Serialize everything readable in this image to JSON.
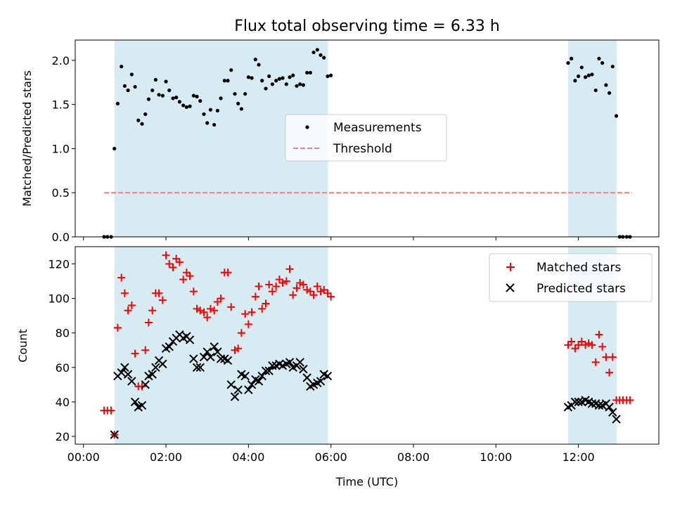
{
  "title": "Flux total observing time = 6.33 h",
  "colors": {
    "shade": "#add8e6",
    "measurement": "#000000",
    "threshold": "#f08080",
    "matched": "#ff0000",
    "predicted": "#000000"
  },
  "chart_data": [
    {
      "type": "scatter",
      "ylabel": "Matched/Predicted stars",
      "ylim": [
        0,
        2.23
      ],
      "yticks": [
        0.0,
        0.5,
        1.0,
        1.5,
        2.0
      ],
      "ytick_labels": [
        "0.0",
        "0.5",
        "1.0",
        "1.5",
        "2.0"
      ],
      "xlim_hours": [
        -0.2,
        13.95
      ],
      "shaded_windows_hours": [
        [
          0.75,
          5.93
        ],
        [
          11.75,
          12.93
        ]
      ],
      "legend": {
        "placement": "center",
        "entries": [
          "Measurements",
          "Threshold"
        ]
      },
      "threshold": {
        "name": "Threshold",
        "value": 0.5,
        "x_range_hours": [
          0.5,
          13.3
        ]
      },
      "series": [
        {
          "name": "Measurements",
          "marker": "dot",
          "points": [
            [
              0.5,
              0
            ],
            [
              0.58,
              0
            ],
            [
              0.67,
              0
            ],
            [
              0.75,
              1.0
            ],
            [
              0.83,
              1.51
            ],
            [
              0.92,
              1.93
            ],
            [
              1.0,
              1.71
            ],
            [
              1.08,
              1.66
            ],
            [
              1.17,
              1.84
            ],
            [
              1.25,
              1.7
            ],
            [
              1.33,
              1.32
            ],
            [
              1.42,
              1.28
            ],
            [
              1.5,
              1.39
            ],
            [
              1.58,
              1.56
            ],
            [
              1.67,
              1.66
            ],
            [
              1.75,
              1.78
            ],
            [
              1.83,
              1.61
            ],
            [
              1.92,
              1.6
            ],
            [
              2.0,
              1.76
            ],
            [
              2.08,
              1.66
            ],
            [
              2.17,
              1.57
            ],
            [
              2.25,
              1.58
            ],
            [
              2.33,
              1.53
            ],
            [
              2.42,
              1.49
            ],
            [
              2.5,
              1.47
            ],
            [
              2.58,
              1.48
            ],
            [
              2.67,
              1.6
            ],
            [
              2.75,
              1.59
            ],
            [
              2.83,
              1.54
            ],
            [
              2.92,
              1.39
            ],
            [
              3.0,
              1.29
            ],
            [
              3.08,
              1.44
            ],
            [
              3.17,
              1.27
            ],
            [
              3.25,
              1.43
            ],
            [
              3.33,
              1.57
            ],
            [
              3.42,
              1.77
            ],
            [
              3.5,
              1.77
            ],
            [
              3.58,
              1.89
            ],
            [
              3.67,
              1.62
            ],
            [
              3.75,
              1.51
            ],
            [
              3.83,
              1.45
            ],
            [
              3.92,
              1.62
            ],
            [
              4.0,
              1.81
            ],
            [
              4.08,
              1.8
            ],
            [
              4.17,
              2.01
            ],
            [
              4.25,
              1.95
            ],
            [
              4.33,
              1.77
            ],
            [
              4.42,
              1.68
            ],
            [
              4.5,
              1.82
            ],
            [
              4.58,
              1.73
            ],
            [
              4.67,
              1.77
            ],
            [
              4.75,
              1.79
            ],
            [
              4.83,
              1.8
            ],
            [
              4.92,
              1.73
            ],
            [
              5.0,
              1.81
            ],
            [
              5.08,
              1.83
            ],
            [
              5.17,
              1.71
            ],
            [
              5.25,
              1.73
            ],
            [
              5.33,
              1.72
            ],
            [
              5.42,
              1.86
            ],
            [
              5.5,
              1.86
            ],
            [
              5.58,
              2.09
            ],
            [
              5.67,
              2.12
            ],
            [
              5.75,
              2.06
            ],
            [
              5.83,
              2.03
            ],
            [
              5.92,
              1.82
            ],
            [
              6.0,
              1.83
            ],
            [
              11.75,
              1.97
            ],
            [
              11.83,
              2.02
            ],
            [
              11.92,
              1.77
            ],
            [
              12.0,
              1.82
            ],
            [
              12.08,
              1.92
            ],
            [
              12.17,
              1.81
            ],
            [
              12.25,
              1.83
            ],
            [
              12.33,
              1.84
            ],
            [
              12.42,
              1.66
            ],
            [
              12.5,
              2.02
            ],
            [
              12.58,
              1.97
            ],
            [
              12.67,
              1.72
            ],
            [
              12.75,
              1.63
            ],
            [
              12.83,
              1.93
            ],
            [
              12.92,
              1.37
            ],
            [
              13.0,
              0
            ],
            [
              13.08,
              0
            ],
            [
              13.17,
              0
            ],
            [
              13.25,
              0
            ]
          ]
        }
      ]
    },
    {
      "type": "scatter",
      "xlabel": "Time (UTC)",
      "ylabel": "Count",
      "ylim": [
        15.5,
        130
      ],
      "yticks": [
        20,
        40,
        60,
        80,
        100,
        120
      ],
      "ytick_labels": [
        "20",
        "40",
        "60",
        "80",
        "100",
        "120"
      ],
      "xlim_hours": [
        -0.2,
        13.95
      ],
      "xticks_hours": [
        0,
        2,
        4,
        6,
        8,
        10,
        12
      ],
      "xtick_labels": [
        "00:00",
        "02:00",
        "04:00",
        "06:00",
        "08:00",
        "10:00",
        "12:00"
      ],
      "shaded_windows_hours": [
        [
          0.75,
          5.93
        ],
        [
          11.75,
          12.93
        ]
      ],
      "legend": {
        "placement": "upper right",
        "entries": [
          "Matched stars",
          "Predicted stars"
        ]
      },
      "series": [
        {
          "name": "Matched stars",
          "marker": "plus",
          "points": [
            [
              0.5,
              35
            ],
            [
              0.58,
              35
            ],
            [
              0.67,
              35
            ],
            [
              0.75,
              21
            ],
            [
              0.83,
              83
            ],
            [
              0.92,
              112
            ],
            [
              1.0,
              103
            ],
            [
              1.08,
              93
            ],
            [
              1.17,
              96
            ],
            [
              1.25,
              68
            ],
            [
              1.33,
              49
            ],
            [
              1.42,
              49
            ],
            [
              1.5,
              70
            ],
            [
              1.58,
              86
            ],
            [
              1.67,
              93
            ],
            [
              1.75,
              103
            ],
            [
              1.83,
              103
            ],
            [
              1.92,
              99
            ],
            [
              2.0,
              125
            ],
            [
              2.08,
              120
            ],
            [
              2.17,
              118
            ],
            [
              2.25,
              123
            ],
            [
              2.33,
              121
            ],
            [
              2.42,
              111
            ],
            [
              2.5,
              115
            ],
            [
              2.58,
              113
            ],
            [
              2.67,
              104
            ],
            [
              2.75,
              94
            ],
            [
              2.83,
              93
            ],
            [
              2.92,
              92
            ],
            [
              3.0,
              89
            ],
            [
              3.08,
              94
            ],
            [
              3.17,
              93
            ],
            [
              3.25,
              98
            ],
            [
              3.33,
              100
            ],
            [
              3.42,
              115
            ],
            [
              3.5,
              115
            ],
            [
              3.58,
              95
            ],
            [
              3.67,
              70
            ],
            [
              3.75,
              71
            ],
            [
              3.83,
              80
            ],
            [
              3.92,
              91
            ],
            [
              4.0,
              85
            ],
            [
              4.08,
              92
            ],
            [
              4.17,
              101
            ],
            [
              4.25,
              107
            ],
            [
              4.33,
              94
            ],
            [
              4.42,
              97
            ],
            [
              4.5,
              108
            ],
            [
              4.58,
              104
            ],
            [
              4.67,
              107
            ],
            [
              4.75,
              111
            ],
            [
              4.83,
              109
            ],
            [
              4.92,
              110
            ],
            [
              5.0,
              117
            ],
            [
              5.08,
              102
            ],
            [
              5.17,
              106
            ],
            [
              5.25,
              109
            ],
            [
              5.33,
              108
            ],
            [
              5.42,
              105
            ],
            [
              5.5,
              104
            ],
            [
              5.58,
              102
            ],
            [
              5.67,
              107
            ],
            [
              5.75,
              104
            ],
            [
              5.83,
              105
            ],
            [
              5.92,
              103
            ],
            [
              6.0,
              101
            ],
            [
              11.75,
              73
            ],
            [
              11.83,
              75
            ],
            [
              11.92,
              71
            ],
            [
              12.0,
              73
            ],
            [
              12.08,
              75
            ],
            [
              12.17,
              73
            ],
            [
              12.25,
              74
            ],
            [
              12.33,
              73
            ],
            [
              12.42,
              63
            ],
            [
              12.5,
              79
            ],
            [
              12.58,
              72
            ],
            [
              12.67,
              66
            ],
            [
              12.75,
              57
            ],
            [
              12.83,
              66
            ],
            [
              12.92,
              41
            ],
            [
              13.0,
              41
            ],
            [
              13.08,
              41
            ],
            [
              13.17,
              41
            ],
            [
              13.25,
              41
            ]
          ]
        },
        {
          "name": "Predicted stars",
          "marker": "x",
          "points": [
            [
              0.75,
              21
            ],
            [
              0.83,
              55
            ],
            [
              0.92,
              57
            ],
            [
              1.0,
              60
            ],
            [
              1.08,
              56
            ],
            [
              1.17,
              52
            ],
            [
              1.25,
              40
            ],
            [
              1.33,
              37
            ],
            [
              1.42,
              38
            ],
            [
              1.5,
              50
            ],
            [
              1.58,
              55
            ],
            [
              1.67,
              56
            ],
            [
              1.75,
              60
            ],
            [
              1.83,
              64
            ],
            [
              1.92,
              62
            ],
            [
              2.0,
              71
            ],
            [
              2.08,
              72
            ],
            [
              2.17,
              75
            ],
            [
              2.25,
              77
            ],
            [
              2.33,
              79
            ],
            [
              2.42,
              77
            ],
            [
              2.5,
              78
            ],
            [
              2.58,
              76
            ],
            [
              2.67,
              65
            ],
            [
              2.75,
              60
            ],
            [
              2.83,
              60
            ],
            [
              2.92,
              66
            ],
            [
              3.0,
              69
            ],
            [
              3.08,
              66
            ],
            [
              3.17,
              72
            ],
            [
              3.25,
              69
            ],
            [
              3.33,
              65
            ],
            [
              3.42,
              65
            ],
            [
              3.5,
              64
            ],
            [
              3.58,
              50
            ],
            [
              3.67,
              43
            ],
            [
              3.75,
              47
            ],
            [
              3.83,
              56
            ],
            [
              3.92,
              55
            ],
            [
              4.0,
              47
            ],
            [
              4.08,
              50
            ],
            [
              4.17,
              53
            ],
            [
              4.25,
              52
            ],
            [
              4.33,
              55
            ],
            [
              4.42,
              58
            ],
            [
              4.5,
              58
            ],
            [
              4.58,
              61
            ],
            [
              4.67,
              61
            ],
            [
              4.75,
              62
            ],
            [
              4.83,
              61
            ],
            [
              4.92,
              62
            ],
            [
              5.0,
              63
            ],
            [
              5.08,
              60
            ],
            [
              5.17,
              61
            ],
            [
              5.25,
              63
            ],
            [
              5.33,
              59
            ],
            [
              5.42,
              54
            ],
            [
              5.5,
              49
            ],
            [
              5.58,
              50
            ],
            [
              5.67,
              51
            ],
            [
              5.75,
              52
            ],
            [
              5.83,
              56
            ],
            [
              5.92,
              55
            ],
            [
              11.75,
              37
            ],
            [
              11.83,
              38
            ],
            [
              11.92,
              40
            ],
            [
              12.0,
              40
            ],
            [
              12.08,
              40
            ],
            [
              12.17,
              41
            ],
            [
              12.25,
              40
            ],
            [
              12.33,
              39
            ],
            [
              12.42,
              39
            ],
            [
              12.5,
              38
            ],
            [
              12.58,
              38
            ],
            [
              12.67,
              39
            ],
            [
              12.75,
              37
            ],
            [
              12.83,
              34
            ],
            [
              12.92,
              30
            ]
          ]
        }
      ]
    }
  ]
}
